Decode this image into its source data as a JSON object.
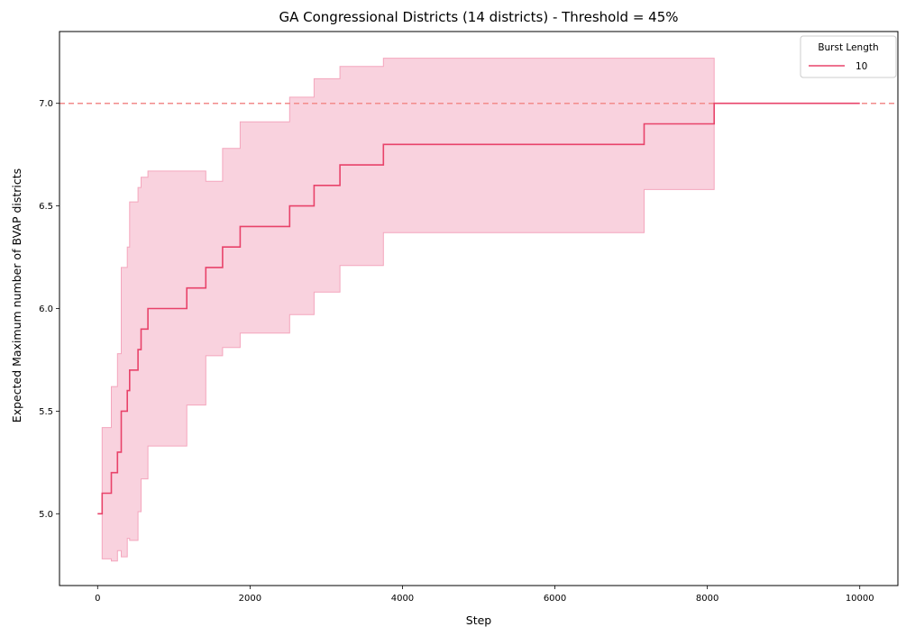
{
  "chart_data": {
    "type": "line",
    "title": "GA Congressional Districts (14 districts) - Threshold = 45%",
    "xlabel": "Step",
    "ylabel": "Expected Maximum number of BVAP districts",
    "xlim": [
      -500,
      10500
    ],
    "ylim": [
      4.65,
      7.35
    ],
    "xticks": [
      0,
      2000,
      4000,
      6000,
      8000,
      10000
    ],
    "yticks": [
      5.0,
      5.5,
      6.0,
      6.5,
      7.0
    ],
    "xtick_labels": [
      "0",
      "2000",
      "4000",
      "6000",
      "8000",
      "10000"
    ],
    "ytick_labels": [
      "5.0",
      "5.5",
      "6.0",
      "6.5",
      "7.0"
    ],
    "grid": false,
    "legend": {
      "title": "Burst Length",
      "placement": "top-right",
      "entries": [
        "10"
      ]
    },
    "reference_line": {
      "y": 7.0,
      "style": "dashed",
      "color": "#f28b8b"
    },
    "series": [
      {
        "name": "10",
        "color": "#e8436a",
        "band_color": "#f4a6bd",
        "x": [
          0,
          60,
          180,
          260,
          310,
          390,
          420,
          530,
          570,
          660,
          1170,
          1420,
          1640,
          1870,
          2520,
          2840,
          3180,
          3750,
          7170,
          8090,
          10000
        ],
        "y": [
          5.0,
          5.1,
          5.2,
          5.3,
          5.5,
          5.6,
          5.7,
          5.8,
          5.9,
          6.0,
          6.1,
          6.2,
          6.3,
          6.4,
          6.5,
          6.6,
          6.7,
          6.8,
          6.9,
          7.0,
          7.0
        ],
        "band_upper": [
          5.0,
          5.42,
          5.62,
          5.78,
          6.2,
          6.3,
          6.52,
          6.59,
          6.64,
          6.67,
          6.67,
          6.62,
          6.78,
          6.91,
          7.03,
          7.12,
          7.18,
          7.22,
          7.22,
          7.0,
          7.0
        ],
        "band_lower": [
          5.0,
          4.78,
          4.77,
          4.82,
          4.79,
          4.88,
          4.87,
          5.01,
          5.17,
          5.33,
          5.53,
          5.77,
          5.81,
          5.88,
          5.97,
          6.08,
          6.21,
          6.37,
          6.58,
          7.0,
          7.0
        ]
      }
    ]
  }
}
